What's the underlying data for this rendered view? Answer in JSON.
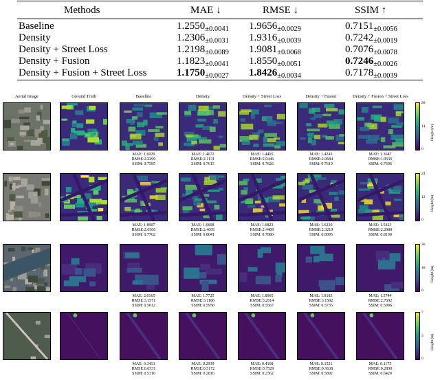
{
  "table": {
    "headers": [
      "Methods",
      "MAE ↓",
      "RMSE ↓",
      "SSIM ↑"
    ],
    "rows": [
      {
        "method": "Baseline",
        "mae": "1.2550",
        "mae_sd": "±0.0041",
        "rmse": "1.9656",
        "rmse_sd": "±0.0029",
        "ssim": "0.7151",
        "ssim_sd": "±0.0056"
      },
      {
        "method": "Density",
        "mae": "1.2306",
        "mae_sd": "±0.0031",
        "rmse": "1.9316",
        "rmse_sd": "±0.0039",
        "ssim": "0.7242",
        "ssim_sd": "±0.0019"
      },
      {
        "method": "Density + Street Loss",
        "mae": "1.2198",
        "mae_sd": "±0.0089",
        "rmse": "1.9081",
        "rmse_sd": "±0.0068",
        "ssim": "0.7076",
        "ssim_sd": "±0.0078"
      },
      {
        "method": "Density + Fusion",
        "mae": "1.1823",
        "mae_sd": "±0.0041",
        "rmse": "1.8550",
        "rmse_sd": "±0.0051",
        "ssim": "0.7246",
        "ssim_sd": "±0.0026"
      },
      {
        "method": "Density + Fusion + Street Loss",
        "mae": "1.1750",
        "mae_sd": "±0.0027",
        "rmse": "1.8426",
        "rmse_sd": "±0.0034",
        "ssim": "0.7178",
        "ssim_sd": "±0.0039"
      }
    ]
  },
  "figure": {
    "columns": [
      "Aerial Image",
      "Ground Truth",
      "Baseline",
      "Density",
      "Density + Street Loss",
      "Density + Fusion",
      "Density + Fusion + Street Loss"
    ],
    "colorbar_label": "Height (m)",
    "rows": [
      {
        "ticks": [
          "28",
          "14",
          "0"
        ],
        "metrics": [
          [
            "MAE: 1.6029",
            "RMSE:2.2299",
            "SSIM: 0.7595"
          ],
          [
            "MAE: 1.4672",
            "RMSE:2.1131",
            "SSIM: 0.7615"
          ],
          [
            "MAE: 1.4405",
            "RMSE:2.0446",
            "SSIM: 0.7626"
          ],
          [
            "MAE: 1.4243",
            "RMSE:2.0684",
            "SSIM: 0.7619"
          ],
          [
            "MAE: 1.3647",
            "RMSE:1.9536",
            "SSIM: 0.7696"
          ]
        ]
      },
      {
        "ticks": [
          "24",
          "12",
          "0"
        ],
        "metrics": [
          [
            "MAE: 1.8907",
            "RMSE:2.6506",
            "SSIM: 0.7762"
          ],
          [
            "MAE: 1.6608",
            "RMSE:2.4095",
            "SSIM: 0.8041"
          ],
          [
            "MAE: 1.6823",
            "RMSE:2.4409",
            "SSIM: 0.7880"
          ],
          [
            "MAE: 1.6230",
            "RMSE:2.3219",
            "SSIM: 0.8095"
          ],
          [
            "MAE: 1.5423",
            "RMSE:2.2080",
            "SSIM: 0.8100"
          ]
        ]
      },
      {
        "ticks": [
          "36",
          "18",
          "0"
        ],
        "metrics": [
          [
            "MAE: 2.0165",
            "RMSE:3.1571",
            "SSIM: 0.5012"
          ],
          [
            "MAE: 1.7725",
            "RMSE:3.1186",
            "SSIM: 0.5950"
          ],
          [
            "MAE: 1.8965",
            "RMSE:3.2614",
            "SSIM: 0.5567"
          ],
          [
            "MAE: 1.8183",
            "RMSE:3.1592",
            "SSIM: 0.5735"
          ],
          [
            "MAE: 1.5744",
            "RMSE:2.7602",
            "SSIM: 0.5996"
          ]
        ]
      },
      {
        "ticks": [
          "7",
          "3",
          "0"
        ],
        "metrics": [
          [
            "MAE: 0.3413",
            "RMSE:0.6531",
            "SSIM: 0.5316"
          ],
          [
            "MAE: 0.2939",
            "RMSE:0.5172",
            "SSIM: 0.2816"
          ],
          [
            "MAE: 0.4168",
            "RMSE:0.7529",
            "SSIM: 0.2362"
          ],
          [
            "MAE: 0.1521",
            "RMSE:0.3638",
            "SSIM: 0.5892"
          ],
          [
            "MAE: 0.1175",
            "RMSE:0.2830",
            "SSIM: 0.6420"
          ]
        ]
      }
    ]
  }
}
